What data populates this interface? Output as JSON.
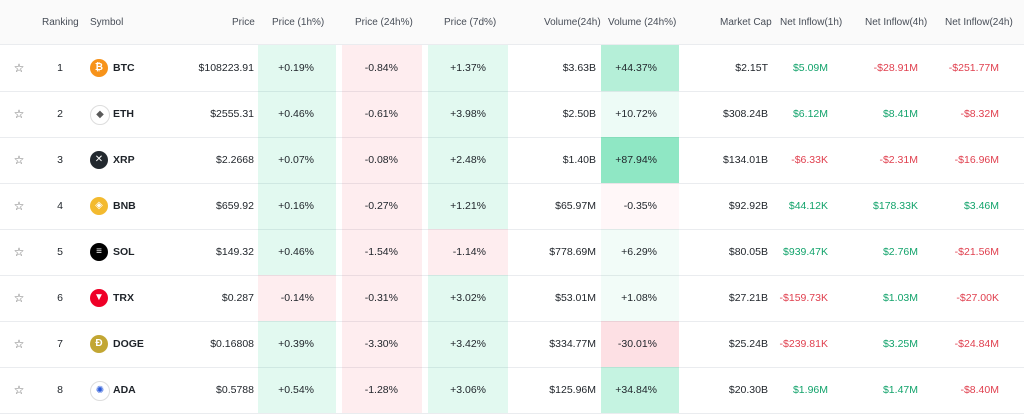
{
  "headers": {
    "ranking": "Ranking",
    "symbol": "Symbol",
    "price": "Price",
    "price_1h": "Price (1h%)",
    "price_24h": "Price (24h%)",
    "price_7d": "Price (7d%)",
    "volume_24h": "Volume(24h)",
    "volume_24h_pct": "Volume (24h%)",
    "market_cap": "Market Cap",
    "inflow_1h": "Net Inflow(1h)",
    "inflow_4h": "Net Inflow(4h)",
    "inflow_24h": "Net Inflow(24h)"
  },
  "colors": {
    "green": "#0ecb81",
    "red": "#f6465d"
  },
  "rows": [
    {
      "rank": "1",
      "symbol": "BTC",
      "icon": "bitcoin-icon",
      "icon_color": "#f7931a",
      "price": "$108223.91",
      "p1h": "+0.19%",
      "p24h": "-0.84%",
      "p7d": "+1.37%",
      "vol": "$3.63B",
      "vol24": "+44.37%",
      "mcap": "$2.15T",
      "in1h": "$5.09M",
      "in4h": "-$28.91M",
      "in24h": "-$251.77M"
    },
    {
      "rank": "2",
      "symbol": "ETH",
      "icon": "ethereum-icon",
      "icon_color": "#ffffff",
      "price": "$2555.31",
      "p1h": "+0.46%",
      "p24h": "-0.61%",
      "p7d": "+3.98%",
      "vol": "$2.50B",
      "vol24": "+10.72%",
      "mcap": "$308.24B",
      "in1h": "$6.12M",
      "in4h": "$8.41M",
      "in24h": "-$8.32M"
    },
    {
      "rank": "3",
      "symbol": "XRP",
      "icon": "xrp-icon",
      "icon_color": "#23292f",
      "price": "$2.2668",
      "p1h": "+0.07%",
      "p24h": "-0.08%",
      "p7d": "+2.48%",
      "vol": "$1.40B",
      "vol24": "+87.94%",
      "mcap": "$134.01B",
      "in1h": "-$6.33K",
      "in4h": "-$2.31M",
      "in24h": "-$16.96M"
    },
    {
      "rank": "4",
      "symbol": "BNB",
      "icon": "bnb-icon",
      "icon_color": "#f3ba2f",
      "price": "$659.92",
      "p1h": "+0.16%",
      "p24h": "-0.27%",
      "p7d": "+1.21%",
      "vol": "$65.97M",
      "vol24": "-0.35%",
      "mcap": "$92.92B",
      "in1h": "$44.12K",
      "in4h": "$178.33K",
      "in24h": "$3.46M"
    },
    {
      "rank": "5",
      "symbol": "SOL",
      "icon": "solana-icon",
      "icon_color": "#000000",
      "price": "$149.32",
      "p1h": "+0.46%",
      "p24h": "-1.54%",
      "p7d": "-1.14%",
      "vol": "$778.69M",
      "vol24": "+6.29%",
      "mcap": "$80.05B",
      "in1h": "$939.47K",
      "in4h": "$2.76M",
      "in24h": "-$21.56M"
    },
    {
      "rank": "6",
      "symbol": "TRX",
      "icon": "tron-icon",
      "icon_color": "#ef0027",
      "price": "$0.287",
      "p1h": "-0.14%",
      "p24h": "-0.31%",
      "p7d": "+3.02%",
      "vol": "$53.01M",
      "vol24": "+1.08%",
      "mcap": "$27.21B",
      "in1h": "-$159.73K",
      "in4h": "$1.03M",
      "in24h": "-$27.00K"
    },
    {
      "rank": "7",
      "symbol": "DOGE",
      "icon": "dogecoin-icon",
      "icon_color": "#c2a633",
      "price": "$0.16808",
      "p1h": "+0.39%",
      "p24h": "-3.30%",
      "p7d": "+3.42%",
      "vol": "$334.77M",
      "vol24": "-30.01%",
      "mcap": "$25.24B",
      "in1h": "-$239.81K",
      "in4h": "$3.25M",
      "in24h": "-$24.84M"
    },
    {
      "rank": "8",
      "symbol": "ADA",
      "icon": "cardano-icon",
      "icon_color": "#ffffff",
      "price": "$0.5788",
      "p1h": "+0.54%",
      "p24h": "-1.28%",
      "p7d": "+3.06%",
      "vol": "$125.96M",
      "vol24": "+34.84%",
      "mcap": "$20.30B",
      "in1h": "$1.96M",
      "in4h": "$1.47M",
      "in24h": "-$8.40M"
    }
  ]
}
